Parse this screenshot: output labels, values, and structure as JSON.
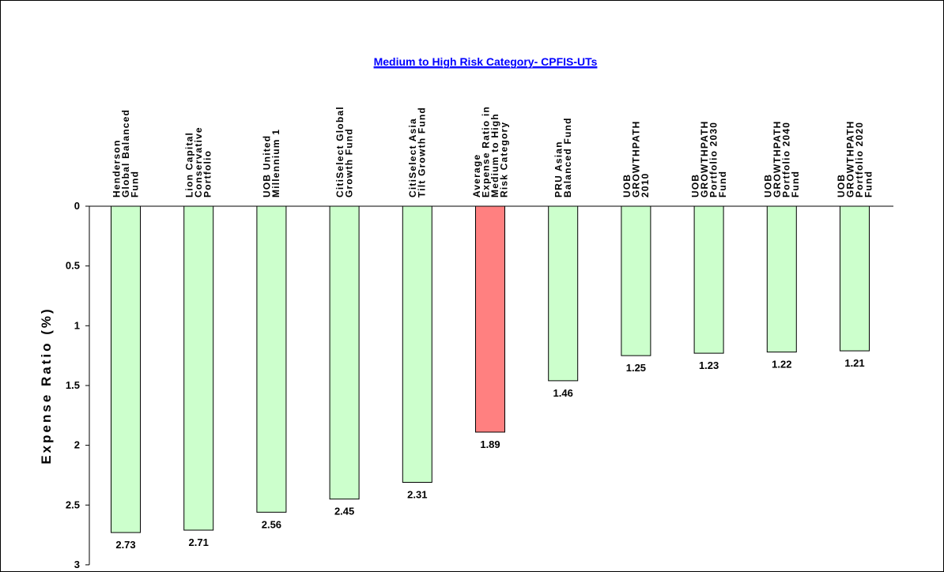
{
  "chart_data": {
    "type": "bar",
    "title": "Medium to High Risk Category- CPFIS-UTs",
    "xlabel": "",
    "ylabel": "Expense Ratio (%)",
    "ylim": [
      0,
      3
    ],
    "y_inverted": true,
    "y_ticks": [
      "0",
      "0.5",
      "1",
      "1.5",
      "2",
      "2.5",
      "3"
    ],
    "x_axis_position": "top",
    "grid": false,
    "legend": "none",
    "categories": [
      [
        "Henderson",
        "Global Balanced",
        "Fund"
      ],
      [
        "Lion Capital",
        "Conservative",
        "Portfolio"
      ],
      [
        "UOB United",
        "Millennium 1"
      ],
      [
        "CitiSelect Global",
        "Growth Fund"
      ],
      [
        "CitiSelect Asia",
        "Tilt Growth Fund"
      ],
      [
        "Average",
        "Expense Ratio in",
        "Medium to High",
        "Risk Category"
      ],
      [
        "PRU Asian",
        "Balanced Fund"
      ],
      [
        "UOB",
        "GROWTHPATH",
        "2010"
      ],
      [
        "UOB",
        "GROWTHPATH",
        "Portfolio 2030",
        "Fund"
      ],
      [
        "UOB",
        "GROWTHPATH",
        "Portfolio 2040",
        "Fund"
      ],
      [
        "UOB",
        "GROWTHPATH",
        "Portfolio 2020",
        "Fund"
      ]
    ],
    "values": [
      2.73,
      2.71,
      2.56,
      2.45,
      2.31,
      1.89,
      1.46,
      1.25,
      1.23,
      1.22,
      1.21
    ],
    "value_labels": [
      "2.73",
      "2.71",
      "2.56",
      "2.45",
      "2.31",
      "1.89",
      "1.46",
      "1.25",
      "1.23",
      "1.22",
      "1.21"
    ],
    "highlight_index": 5,
    "colors": {
      "bar": "#ccffcc",
      "highlight": "#ff8080",
      "stroke": "#000000",
      "title": "#0000ff"
    }
  }
}
